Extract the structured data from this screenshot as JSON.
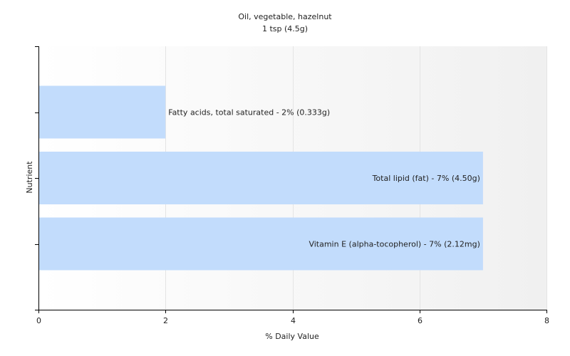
{
  "chart_data": {
    "type": "bar",
    "orientation": "horizontal",
    "title": "Oil, vegetable, hazelnut",
    "subtitle": "1 tsp (4.5g)",
    "xlabel": "% Daily Value",
    "ylabel": "Nutrient",
    "xlim": [
      0,
      8
    ],
    "xticks": [
      "0",
      "2",
      "4",
      "6",
      "8"
    ],
    "grid": true,
    "legend": "none",
    "bar_color": "#c2dcfc",
    "categories": [
      "Fatty acids, total saturated",
      "Total lipid (fat)",
      "Vitamin E (alpha-tocopherol)"
    ],
    "values": [
      2,
      7,
      7
    ],
    "bar_labels": [
      "Fatty acids, total saturated - 2% (0.333g)",
      "Total lipid (fat) - 7% (4.50g)",
      "Vitamin E (alpha-tocopherol) - 7% (2.12mg)"
    ],
    "label_placement": [
      "outside",
      "inside",
      "inside"
    ]
  }
}
